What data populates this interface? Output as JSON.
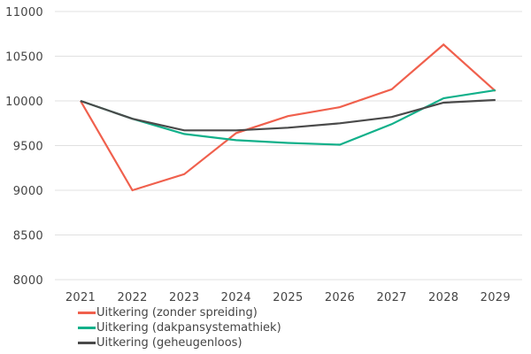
{
  "chart_data": {
    "type": "line",
    "title": "",
    "xlabel": "",
    "ylabel": "",
    "x": [
      "2021",
      "2022",
      "2023",
      "2024",
      "2025",
      "2026",
      "2027",
      "2028",
      "2029"
    ],
    "ylim": [
      8000,
      11000
    ],
    "yticks": [
      8000,
      8500,
      9000,
      9500,
      10000,
      10500,
      11000
    ],
    "grid": "horizontal",
    "legend_position": "bottom-left",
    "series": [
      {
        "name": "Uitkering (zonder spreiding)",
        "color": "#F0604D",
        "values": [
          10000,
          9000,
          9180,
          9640,
          9830,
          9930,
          10130,
          10630,
          10110
        ]
      },
      {
        "name": "Uitkering (dakpansystemathiek)",
        "color": "#11B08A",
        "values": [
          10000,
          9800,
          9630,
          9560,
          9530,
          9510,
          9740,
          10030,
          10120
        ]
      },
      {
        "name": "Uitkering (geheugenloos)",
        "color": "#4A4A4A",
        "values": [
          10000,
          9800,
          9670,
          9670,
          9700,
          9750,
          9820,
          9980,
          10010
        ]
      }
    ]
  }
}
